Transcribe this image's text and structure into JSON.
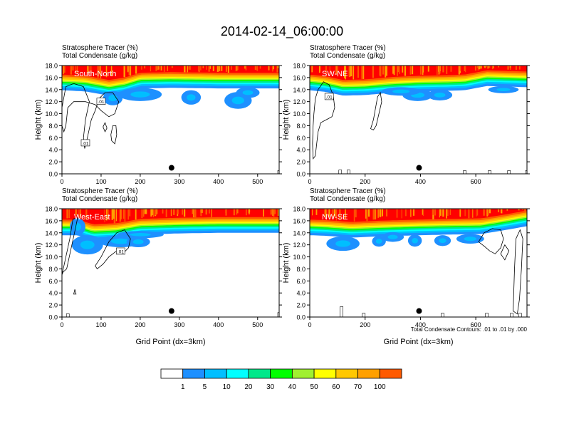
{
  "title": "2014-02-14_06:00:00",
  "chart_data": {
    "type": "heatmap",
    "colorbar": {
      "levels": [
        "1",
        "5",
        "10",
        "20",
        "30",
        "40",
        "50",
        "60",
        "70",
        "100"
      ],
      "colors": [
        "#ffffff",
        "#1e90ff",
        "#00bfff",
        "#00ffff",
        "#00e88a",
        "#00ff00",
        "#a0f030",
        "#ffff00",
        "#ffc800",
        "#ffa000",
        "#ff5a00",
        "#ff0000"
      ]
    },
    "contour_color": "#000000",
    "panels": [
      {
        "id": "sn",
        "label": "South-North",
        "field_label": "Stratosphere Tracer   (%)",
        "contour_label": "Total Condensate   (g/kg)",
        "ylabel": "Height (km)",
        "xlabel": "",
        "xlim": [
          0,
          555
        ],
        "ylim": [
          0,
          18
        ],
        "xticks": [
          "0",
          "100",
          "200",
          "300",
          "400",
          "500"
        ],
        "xtick_values": [
          0,
          100,
          200,
          300,
          400,
          500
        ],
        "yticks": [
          "0.0",
          "2.0",
          "4.0",
          "6.0",
          "8.0",
          "10.0",
          "12.0",
          "14.0",
          "16.0",
          "18.0"
        ],
        "ytick_values": [
          0,
          2,
          4,
          6,
          8,
          10,
          12,
          14,
          16,
          18
        ],
        "tropopause": [
          [
            0,
            15.3
          ],
          [
            60,
            15.1
          ],
          [
            120,
            14.4
          ],
          [
            160,
            14.8
          ],
          [
            200,
            15.6
          ],
          [
            280,
            15.7
          ],
          [
            400,
            15.6
          ],
          [
            555,
            15.6
          ]
        ],
        "anvils": [
          [
            200,
            13.2,
            110,
            1.1
          ],
          [
            330,
            12.7,
            50,
            1.2
          ],
          [
            450,
            12.2,
            70,
            1.4
          ],
          [
            475,
            13.5,
            60,
            0.9
          ],
          [
            130,
            12.6,
            50,
            1.2
          ]
        ],
        "contour_labels": [
          {
            "text": ".01",
            "x": 100,
            "y": 12.0
          },
          {
            "text": ".01",
            "x": 60,
            "y": 5.1
          }
        ],
        "contours": [
          [
            [
              0,
              11
            ],
            [
              10,
              14.5
            ],
            [
              30,
              15
            ],
            [
              55,
              14.5
            ],
            [
              70,
              12
            ],
            [
              60,
              9
            ],
            [
              55,
              6
            ],
            [
              58,
              4.2
            ],
            [
              65,
              6
            ],
            [
              75,
              9
            ],
            [
              85,
              10.5
            ],
            [
              95,
              12.5
            ],
            [
              110,
              13.5
            ],
            [
              130,
              13.5
            ],
            [
              145,
              12
            ],
            [
              135,
              10
            ],
            [
              120,
              9.5
            ],
            [
              100,
              10.5
            ],
            [
              85,
              11.5
            ],
            [
              60,
              12
            ],
            [
              30,
              12
            ],
            [
              15,
              11
            ],
            [
              10,
              8
            ],
            [
              5,
              7
            ],
            [
              0,
              8
            ]
          ],
          [
            [
              125,
              6.5
            ],
            [
              130,
              8
            ],
            [
              138,
              8
            ],
            [
              140,
              6.5
            ],
            [
              135,
              5
            ],
            [
              127,
              5.5
            ]
          ],
          [
            [
              105,
              7.8
            ],
            [
              110,
              8.5
            ],
            [
              115,
              7.6
            ],
            [
              110,
              7
            ]
          ]
        ],
        "marker": {
          "x": 280,
          "y": 1.0
        },
        "surface_contours": [
          [
            555,
            0.3
          ]
        ]
      },
      {
        "id": "swne",
        "label": "SW-NE",
        "field_label": "Stratosphere Tracer   (%)",
        "contour_label": "Total Condensate   (g/kg)",
        "ylabel": "Height (km)",
        "xlabel": "",
        "xlim": [
          0,
          785
        ],
        "ylim": [
          0,
          18
        ],
        "xticks": [
          "0",
          "200",
          "400",
          "600"
        ],
        "xtick_values": [
          0,
          200,
          400,
          600
        ],
        "yticks": [
          "0.0",
          "2.0",
          "4.0",
          "6.0",
          "8.0",
          "10.0",
          "12.0",
          "14.0",
          "16.0",
          "18.0"
        ],
        "ytick_values": [
          0,
          2,
          4,
          6,
          8,
          10,
          12,
          14,
          16,
          18
        ],
        "tropopause": [
          [
            0,
            15.3
          ],
          [
            60,
            15.0
          ],
          [
            120,
            14.4
          ],
          [
            200,
            14.5
          ],
          [
            300,
            14.9
          ],
          [
            400,
            15.1
          ],
          [
            500,
            15.2
          ],
          [
            560,
            15.3
          ],
          [
            640,
            16.0
          ],
          [
            785,
            15.8
          ]
        ],
        "anvils": [
          [
            390,
            13.1,
            110,
            1.0
          ],
          [
            470,
            13.1,
            90,
            0.9
          ],
          [
            330,
            13.7,
            140,
            0.7
          ],
          [
            700,
            14.0,
            110,
            0.6
          ]
        ],
        "contour_labels": [
          {
            "text": ".01",
            "x": 70,
            "y": 12.8
          }
        ],
        "contours": [
          [
            [
              15,
              10
            ],
            [
              20,
              12.5
            ],
            [
              30,
              14
            ],
            [
              50,
              15.3
            ],
            [
              70,
              14.8
            ],
            [
              85,
              13
            ],
            [
              90,
              11
            ],
            [
              80,
              9.5
            ],
            [
              60,
              9
            ],
            [
              40,
              8.5
            ],
            [
              30,
              7
            ],
            [
              25,
              5
            ],
            [
              20,
              3
            ],
            [
              12,
              2.5
            ],
            [
              10,
              5
            ],
            [
              12,
              8
            ]
          ],
          [
            [
              220,
              7.5
            ],
            [
              230,
              9
            ],
            [
              240,
              11.5
            ],
            [
              245,
              12.8
            ],
            [
              255,
              13.5
            ],
            [
              260,
              12
            ],
            [
              250,
              10
            ],
            [
              240,
              8
            ],
            [
              230,
              7.3
            ]
          ]
        ],
        "marker": {
          "x": 395,
          "y": 1.0
        },
        "surface_contours": [
          [
            110,
            0.4
          ],
          [
            140,
            0.4
          ],
          [
            560,
            0.3
          ],
          [
            650,
            0.3
          ],
          [
            720,
            0.3
          ],
          [
            785,
            0.3
          ]
        ]
      },
      {
        "id": "we",
        "label": "West-East",
        "field_label": "Stratosphere Tracer   (%)",
        "contour_label": "Total Condensate   (g/kg)",
        "ylabel": "Height (km)",
        "xlabel": "Grid Point (dx=3km)",
        "xlim": [
          0,
          555
        ],
        "ylim": [
          0,
          18
        ],
        "xticks": [
          "0",
          "100",
          "200",
          "300",
          "400",
          "500"
        ],
        "xtick_values": [
          0,
          100,
          200,
          300,
          400,
          500
        ],
        "yticks": [
          "0.0",
          "2.0",
          "4.0",
          "6.0",
          "8.0",
          "10.0",
          "12.0",
          "14.0",
          "16.0",
          "18.0"
        ],
        "ytick_values": [
          0,
          2,
          4,
          6,
          8,
          10,
          12,
          14,
          16,
          18
        ],
        "tropopause": [
          [
            0,
            15.0
          ],
          [
            40,
            15.0
          ],
          [
            80,
            14.2
          ],
          [
            140,
            14.4
          ],
          [
            200,
            15.1
          ],
          [
            300,
            15.3
          ],
          [
            400,
            15.4
          ],
          [
            555,
            15.4
          ]
        ],
        "anvils": [
          [
            65,
            12.0,
            80,
            1.6
          ],
          [
            150,
            12.6,
            110,
            1.0
          ],
          [
            195,
            12.5,
            60,
            0.9
          ],
          [
            40,
            15.0,
            40,
            1.4
          ],
          [
            200,
            13.7,
            120,
            0.6
          ]
        ],
        "contour_labels": [
          {
            "text": ".01",
            "x": 150,
            "y": 10.9
          }
        ],
        "contours": [
          [
            [
              0,
              7
            ],
            [
              10,
              10
            ],
            [
              20,
              13
            ],
            [
              28,
              16.3
            ],
            [
              40,
              16.5
            ],
            [
              32,
              14
            ],
            [
              22,
              11
            ],
            [
              12,
              8
            ],
            [
              3,
              7.5
            ]
          ],
          [
            [
              85,
              8.5
            ],
            [
              100,
              10
            ],
            [
              120,
              12.5
            ],
            [
              140,
              14
            ],
            [
              160,
              14.5
            ],
            [
              175,
              13
            ],
            [
              170,
              11.5
            ],
            [
              155,
              10.5
            ],
            [
              140,
              11
            ],
            [
              120,
              10
            ],
            [
              105,
              8.8
            ],
            [
              90,
              8
            ]
          ],
          [
            [
              30,
              3.8
            ],
            [
              33,
              4.6
            ],
            [
              36,
              3.8
            ]
          ]
        ],
        "marker": {
          "x": 280,
          "y": 1.0
        },
        "surface_contours": [
          [
            555,
            0.5
          ],
          [
            15,
            0.3
          ]
        ]
      },
      {
        "id": "nwse",
        "label": "NW-SE",
        "field_label": "Stratosphere Tracer   (%)",
        "contour_label": "Total Condensate   (g/kg)",
        "ylabel": "Height (km)",
        "xlabel": "Grid Point (dx=3km)",
        "xlim": [
          0,
          785
        ],
        "ylim": [
          0,
          18
        ],
        "xticks": [
          "0",
          "200",
          "400",
          "600"
        ],
        "xtick_values": [
          0,
          200,
          400,
          600
        ],
        "yticks": [
          "0.0",
          "2.0",
          "4.0",
          "6.0",
          "8.0",
          "10.0",
          "12.0",
          "14.0",
          "16.0",
          "18.0"
        ],
        "ytick_values": [
          0,
          2,
          4,
          6,
          8,
          10,
          12,
          14,
          16,
          18
        ],
        "tropopause": [
          [
            0,
            15.0
          ],
          [
            60,
            14.9
          ],
          [
            150,
            14.6
          ],
          [
            250,
            14.8
          ],
          [
            400,
            15.0
          ],
          [
            500,
            15.1
          ],
          [
            620,
            15.2
          ],
          [
            700,
            15.8
          ],
          [
            785,
            16.5
          ]
        ],
        "anvils": [
          [
            120,
            12.2,
            120,
            1.2
          ],
          [
            250,
            12.6,
            50,
            0.9
          ],
          [
            380,
            12.7,
            50,
            1.0
          ],
          [
            300,
            13.3,
            80,
            0.8
          ],
          [
            480,
            12.7,
            60,
            0.9
          ],
          [
            580,
            13.0,
            100,
            0.8
          ]
        ],
        "contour_labels": [],
        "contours": [
          [
            [
              610,
              12.5
            ],
            [
              630,
              14
            ],
            [
              660,
              14.7
            ],
            [
              690,
              14.5
            ],
            [
              700,
              13
            ],
            [
              690,
              11.5
            ],
            [
              670,
              10.5
            ],
            [
              650,
              11
            ],
            [
              630,
              11.8
            ]
          ],
          [
            [
              690,
              10.5
            ],
            [
              705,
              12
            ],
            [
              720,
              11
            ],
            [
              705,
              9.5
            ]
          ],
          [
            [
              735,
              1
            ],
            [
              740,
              8
            ],
            [
              745,
              13
            ],
            [
              760,
              14.5
            ],
            [
              770,
              13
            ],
            [
              765,
              8
            ],
            [
              758,
              3
            ],
            [
              750,
              0.5
            ]
          ]
        ],
        "marker": {
          "x": 395,
          "y": 1.0
        },
        "surface_contours": [
          [
            115,
            1.5
          ],
          [
            195,
            0.4
          ],
          [
            480,
            0.4
          ],
          [
            640,
            0.4
          ],
          [
            730,
            0.4
          ],
          [
            760,
            0.4
          ]
        ],
        "footnote": "Total Condensate Contours: .01 to .01 by .000"
      }
    ]
  }
}
